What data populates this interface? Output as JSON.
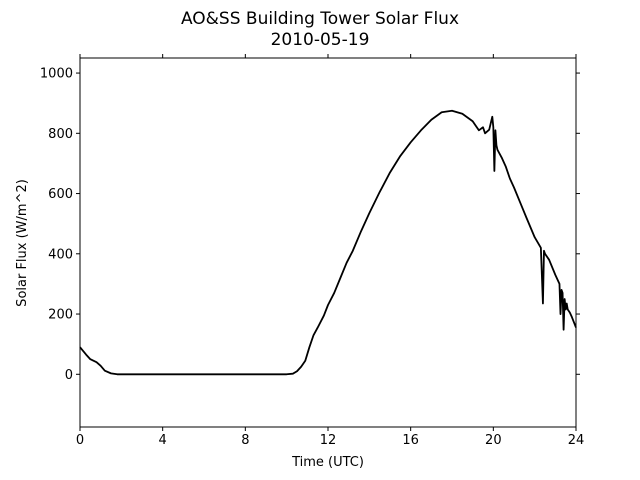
{
  "chart_data": {
    "type": "line",
    "title": "AO&SS Building Tower Solar Flux",
    "subtitle": "2010-05-19",
    "xlabel": "Time (UTC)",
    "ylabel": "Solar Flux (W/m^2)",
    "xlim": [
      0,
      24
    ],
    "ylim": [
      -175,
      1050
    ],
    "xticks": [
      0,
      4,
      8,
      12,
      16,
      20,
      24
    ],
    "yticks": [
      0,
      200,
      400,
      600,
      800,
      1000
    ],
    "grid": false,
    "series": [
      {
        "color": "#000000",
        "x": [
          0.0,
          0.3,
          0.5,
          0.8,
          1.0,
          1.2,
          1.5,
          1.8,
          2.0,
          4.0,
          6.0,
          8.0,
          9.0,
          10.0,
          10.3,
          10.5,
          10.7,
          10.9,
          11.1,
          11.3,
          11.5,
          11.8,
          12.0,
          12.3,
          12.6,
          12.9,
          13.2,
          13.6,
          14.0,
          14.5,
          15.0,
          15.5,
          16.0,
          16.5,
          17.0,
          17.5,
          18.0,
          18.5,
          19.0,
          19.3,
          19.5,
          19.6,
          19.8,
          19.95,
          20.0,
          20.05,
          20.1,
          20.15,
          20.2,
          20.4,
          20.6,
          20.8,
          21.0,
          21.3,
          21.6,
          22.0,
          22.3,
          22.4,
          22.45,
          22.5,
          22.7,
          23.0,
          23.2,
          23.25,
          23.3,
          23.35,
          23.4,
          23.45,
          23.5,
          23.55,
          23.6,
          23.7,
          23.8,
          24.0
        ],
        "y": [
          90,
          65,
          50,
          40,
          28,
          12,
          3,
          0,
          0,
          0,
          0,
          0,
          0,
          0,
          2,
          10,
          25,
          45,
          90,
          130,
          155,
          195,
          230,
          270,
          320,
          370,
          410,
          475,
          535,
          605,
          670,
          725,
          770,
          810,
          845,
          870,
          875,
          865,
          840,
          810,
          820,
          800,
          812,
          855,
          820,
          675,
          810,
          760,
          745,
          720,
          690,
          650,
          620,
          570,
          520,
          455,
          420,
          235,
          410,
          400,
          380,
          330,
          300,
          200,
          280,
          270,
          148,
          250,
          215,
          235,
          215,
          205,
          190,
          155
        ]
      }
    ]
  }
}
